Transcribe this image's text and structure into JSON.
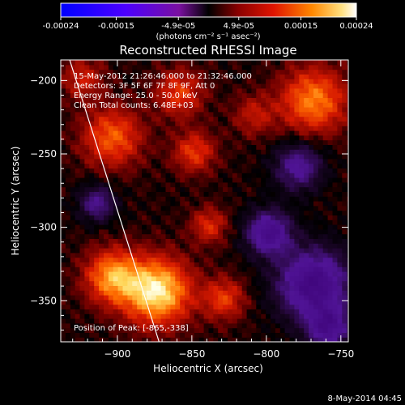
{
  "colorbar": {
    "tick_labels": [
      "-0.00024",
      "-0.00015",
      "-4.9e-05",
      "4.9e-05",
      "0.00015",
      "0.00024"
    ],
    "tick_values": [
      -0.00024,
      -0.00015,
      -4.9e-05,
      4.9e-05,
      0.00015,
      0.00024
    ],
    "range": [
      -0.00024,
      0.00024
    ],
    "unit_label": "(photons cm⁻² s⁻¹ asec⁻²)"
  },
  "chart_data": {
    "type": "heatmap",
    "title": "Reconstructed RHESSI Image",
    "xlabel": "Heliocentric X (arcsec)",
    "ylabel": "Heliocentric Y (arcsec)",
    "xlim": [
      -938,
      -745
    ],
    "ylim": [
      -378,
      -186
    ],
    "x_ticks": [
      -900,
      -850,
      -800,
      -750
    ],
    "x_tick_labels": [
      "−900",
      "−850",
      "−800",
      "−750"
    ],
    "y_ticks": [
      -200,
      -250,
      -300,
      -350
    ],
    "y_tick_labels": [
      "−200",
      "−250",
      "−300",
      "−350"
    ],
    "limb_line": [
      [
        -932,
        -186
      ],
      [
        -872,
        -378
      ]
    ],
    "peak": [
      -865,
      -338
    ],
    "annotations": [
      "15-May-2012 21:26:46.000 to 21:32:46.000",
      "Detectors: 3F 5F 6F 7F 8F 9F, Att 0",
      "Energy Range: 25.0 - 50.0 keV",
      "Clean     Total counts: 6.48E+03",
      "Position of Peak: [-865,-338]"
    ]
  },
  "footer": {
    "date": "8-May-2014 04:45"
  },
  "colors": {
    "background": "#000000",
    "foreground": "#ffffff"
  }
}
